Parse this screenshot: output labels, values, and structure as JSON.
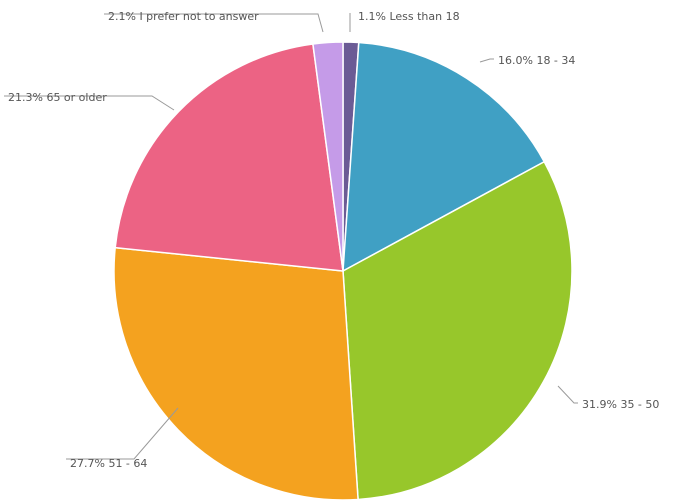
{
  "chart_data": {
    "type": "pie",
    "title": "",
    "slices": [
      {
        "label": "Less than 18",
        "value": 1.1,
        "display": "1.1% Less than 18",
        "color": "#6b5b95"
      },
      {
        "label": "18 - 34",
        "value": 16.0,
        "display": "16.0% 18 - 34",
        "color": "#40a0c4"
      },
      {
        "label": "35 - 50",
        "value": 31.9,
        "display": "31.9% 35 - 50",
        "color": "#97c72b"
      },
      {
        "label": "51 - 64",
        "value": 27.7,
        "display": "27.7% 51 - 64",
        "color": "#f4a21f"
      },
      {
        "label": "65 or older",
        "value": 21.3,
        "display": "21.3% 65 or older",
        "color": "#ec6384"
      },
      {
        "label": "I prefer not to answer",
        "value": 2.1,
        "display": "2.1% I prefer not to answer",
        "color": "#c59be8"
      }
    ],
    "start": "top",
    "direction": "clockwise",
    "legend": "none",
    "labels": "outside-with-leader-lines"
  }
}
